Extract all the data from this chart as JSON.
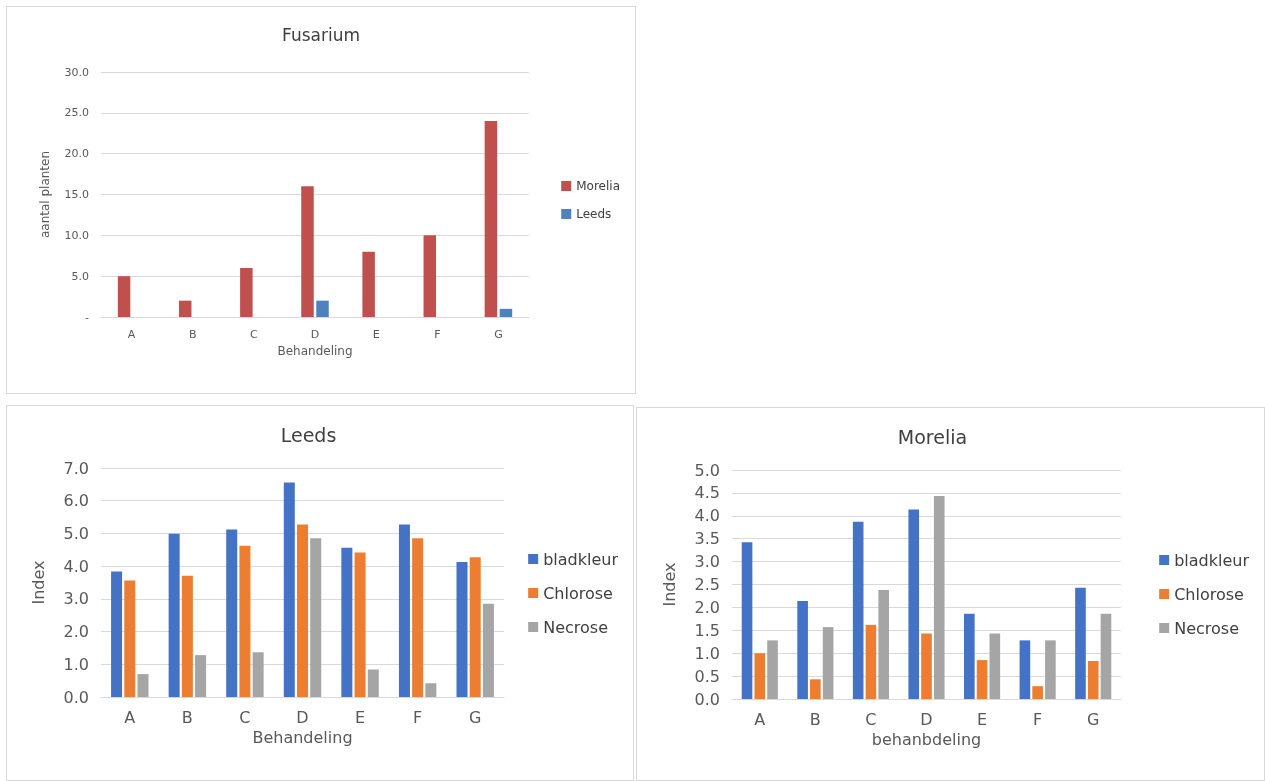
{
  "chart_data": [
    {
      "type": "bar",
      "title": "Fusarium",
      "xlabel": "Behandeling",
      "ylabel": "aantal planten",
      "categories": [
        "A",
        "B",
        "C",
        "D",
        "E",
        "F",
        "G"
      ],
      "series": [
        {
          "name": "Morelia",
          "color": "#c0504d",
          "values": [
            5,
            2,
            6,
            16,
            8,
            10,
            24
          ]
        },
        {
          "name": "Leeds",
          "color": "#4f81bd",
          "values": [
            0,
            0,
            0,
            2,
            0,
            0,
            1
          ]
        }
      ],
      "ylim": [
        0,
        30
      ],
      "yticks": [
        {
          "value": 0,
          "label": "-"
        },
        {
          "value": 5,
          "label": "5.0"
        },
        {
          "value": 10,
          "label": "10.0"
        },
        {
          "value": 15,
          "label": "15.0"
        },
        {
          "value": 20,
          "label": "20.0"
        },
        {
          "value": 25,
          "label": "25.0"
        },
        {
          "value": 30,
          "label": "30.0"
        }
      ],
      "grid": "y",
      "legend": "right"
    },
    {
      "type": "bar",
      "title": "Leeds",
      "xlabel": "Behandeling",
      "ylabel": "Index",
      "categories": [
        "A",
        "B",
        "C",
        "D",
        "E",
        "F",
        "G"
      ],
      "series": [
        {
          "name": "bladkleur",
          "color": "#4472c4",
          "values": [
            3.84,
            4.99,
            5.12,
            6.56,
            4.56,
            5.27,
            4.13
          ]
        },
        {
          "name": "Chlorose",
          "color": "#ed7d31",
          "values": [
            3.56,
            3.71,
            4.62,
            5.27,
            4.42,
            4.85,
            4.27
          ]
        },
        {
          "name": "Necrose",
          "color": "#a5a5a5",
          "values": [
            0.7,
            1.28,
            1.37,
            4.85,
            0.84,
            0.42,
            2.85
          ]
        }
      ],
      "ylim": [
        0,
        7
      ],
      "yticks": [
        {
          "value": 0,
          "label": "0.0"
        },
        {
          "value": 1,
          "label": "1.0"
        },
        {
          "value": 2,
          "label": "2.0"
        },
        {
          "value": 3,
          "label": "3.0"
        },
        {
          "value": 4,
          "label": "4.0"
        },
        {
          "value": 5,
          "label": "5.0"
        },
        {
          "value": 6,
          "label": "6.0"
        },
        {
          "value": 7,
          "label": "7.0"
        }
      ],
      "grid": "y",
      "legend": "right"
    },
    {
      "type": "bar",
      "title": "Morelia",
      "xlabel": "behanbdeling",
      "ylabel": "Index",
      "categories": [
        "A",
        "B",
        "C",
        "D",
        "E",
        "F",
        "G"
      ],
      "series": [
        {
          "name": "bladkleur",
          "color": "#4472c4",
          "values": [
            3.42,
            2.14,
            3.87,
            4.14,
            1.86,
            1.28,
            2.43
          ]
        },
        {
          "name": "Chlorose",
          "color": "#ed7d31",
          "values": [
            1.0,
            0.43,
            1.62,
            1.43,
            0.85,
            0.28,
            0.83
          ]
        },
        {
          "name": "Necrose",
          "color": "#a5a5a5",
          "values": [
            1.28,
            1.57,
            2.38,
            4.43,
            1.43,
            1.28,
            1.86
          ]
        }
      ],
      "ylim": [
        0,
        5
      ],
      "yticks": [
        {
          "value": 0,
          "label": "0.0"
        },
        {
          "value": 0.5,
          "label": "0.5"
        },
        {
          "value": 1,
          "label": "1.0"
        },
        {
          "value": 1.5,
          "label": "1.5"
        },
        {
          "value": 2,
          "label": "2.0"
        },
        {
          "value": 2.5,
          "label": "2.5"
        },
        {
          "value": 3,
          "label": "3.0"
        },
        {
          "value": 3.5,
          "label": "3.5"
        },
        {
          "value": 4,
          "label": "4.0"
        },
        {
          "value": 4.5,
          "label": "4.5"
        },
        {
          "value": 5,
          "label": "5.0"
        }
      ],
      "grid": "y",
      "legend": "right"
    }
  ]
}
